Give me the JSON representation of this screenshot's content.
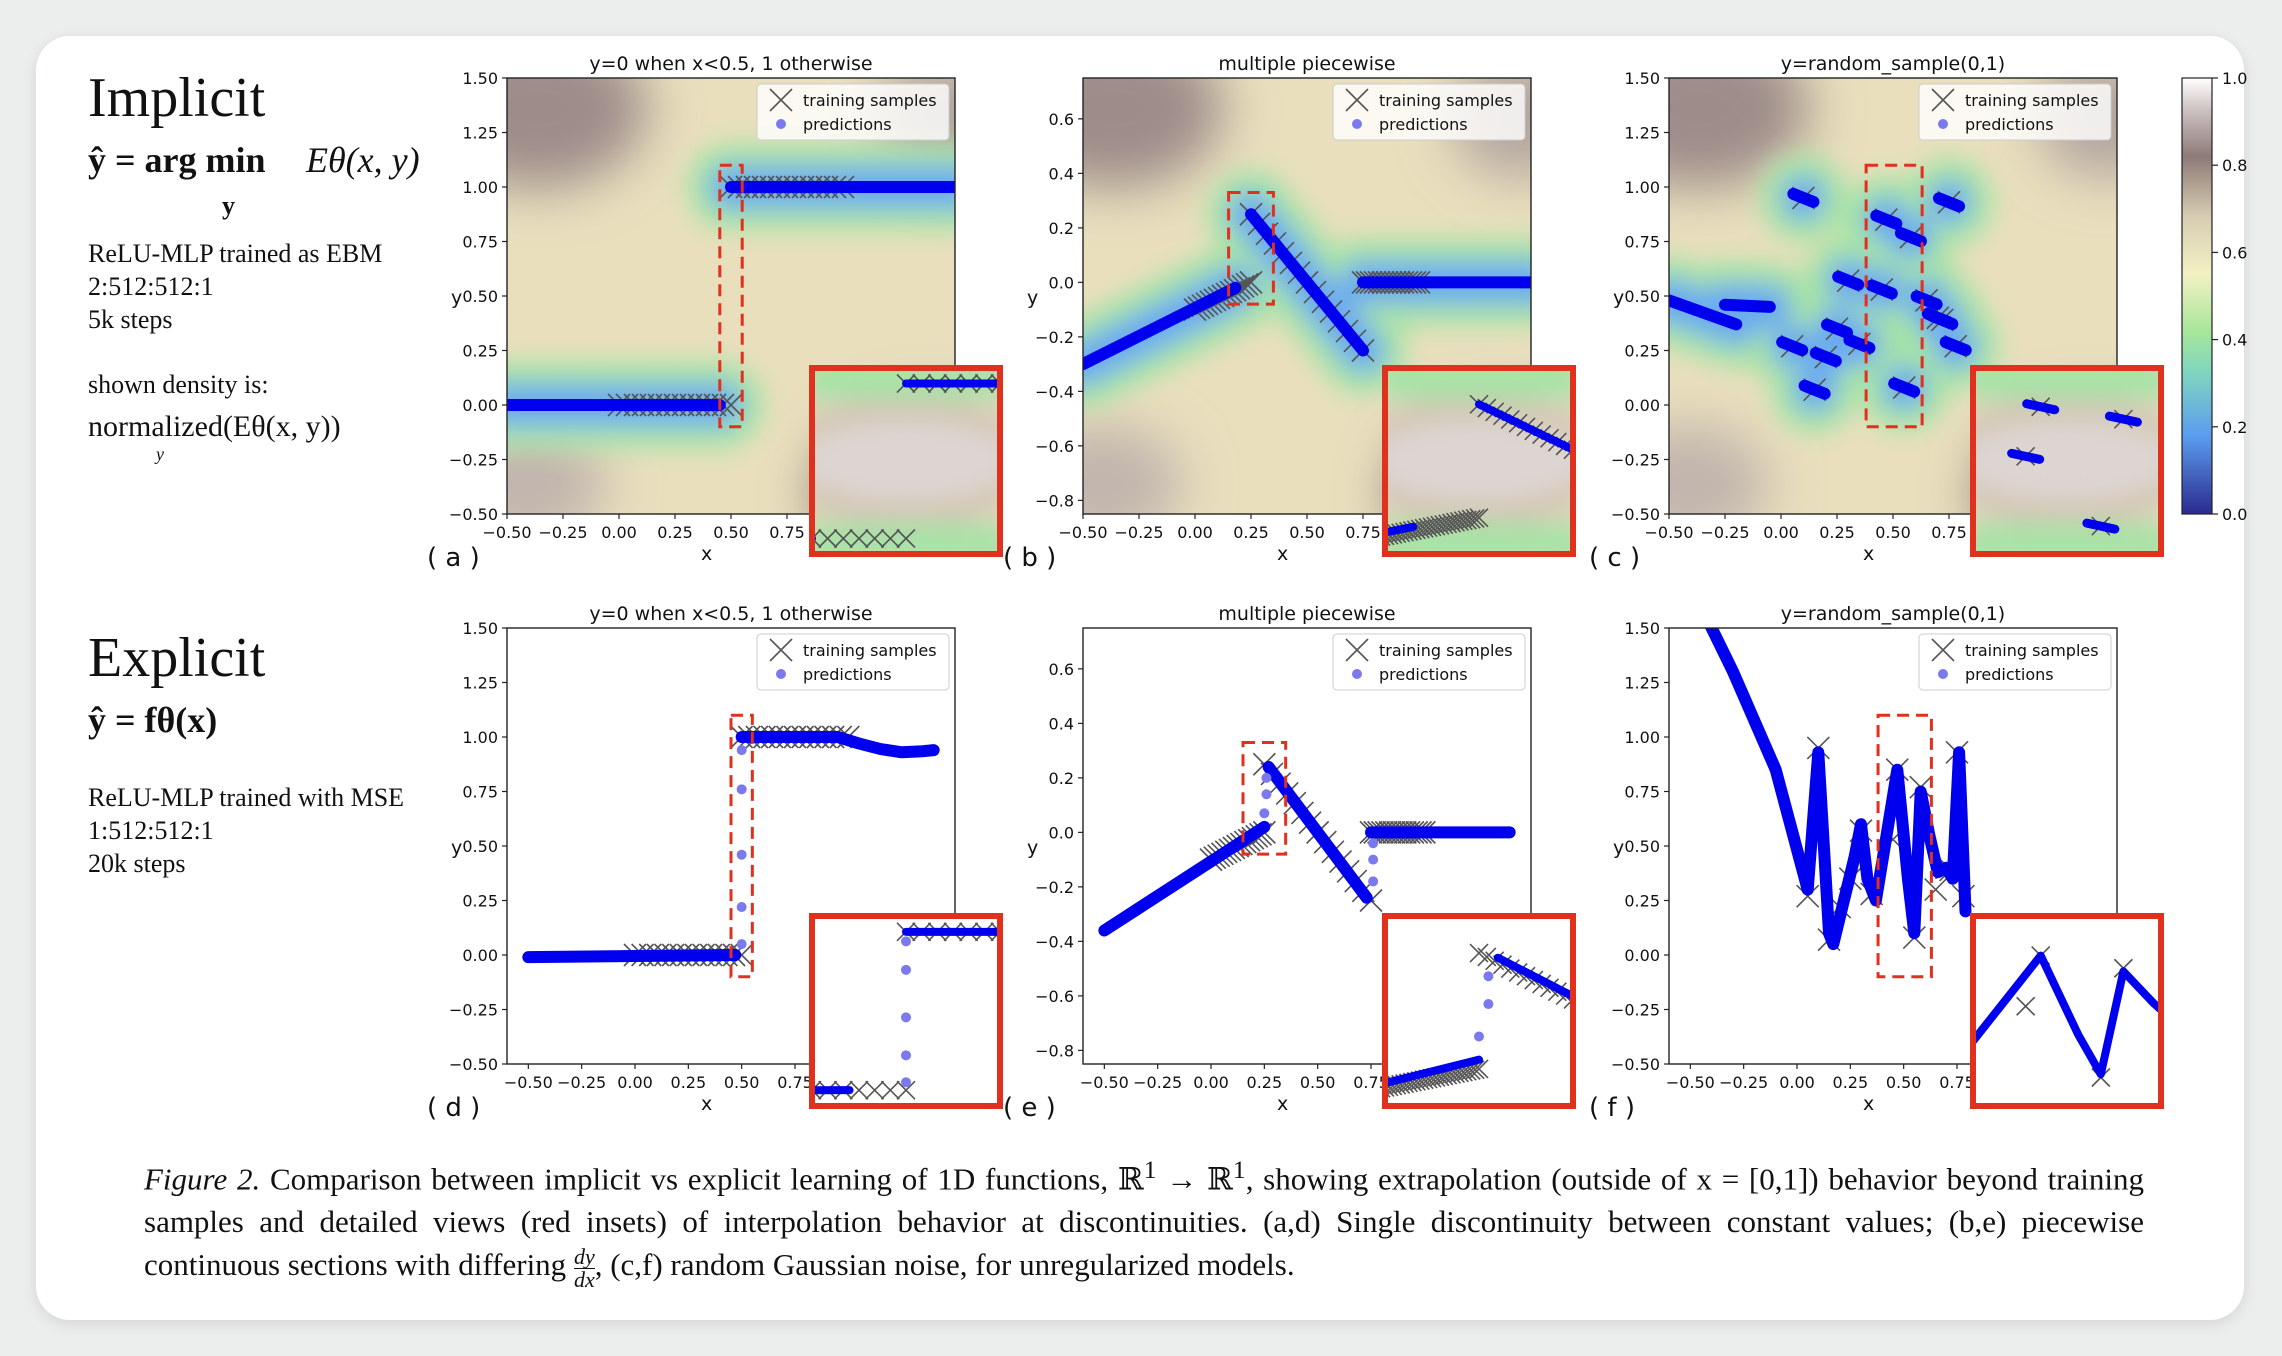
{
  "rows": {
    "implicit": {
      "heading": "Implicit",
      "equation_lhs": "ŷ = arg min",
      "equation_sub": "y",
      "equation_rhs": "Eθ(x, y)",
      "desc": [
        "ReLU-MLP trained as EBM",
        "2:512:512:1",
        "5k steps"
      ],
      "density_label": "shown density is:",
      "density_expr": "normalized(Eθ(x, y))",
      "density_sub": "y"
    },
    "explicit": {
      "heading": "Explicit",
      "equation": "ŷ = fθ(x)",
      "desc": [
        "ReLU-MLP trained with MSE",
        "1:512:512:1",
        "20k steps"
      ]
    }
  },
  "colorbar": {
    "ticks": [
      "0.0",
      "0.2",
      "0.4",
      "0.6",
      "0.8",
      "1.0"
    ],
    "colors": [
      "#2f2f99",
      "#5aa0ef",
      "#90e0a0",
      "#f5f0c8",
      "#d9d0c0",
      "#8a7a7a",
      "#ffffff"
    ]
  },
  "legend": {
    "training": "training samples",
    "predictions": "predictions"
  },
  "colors": {
    "prediction": "#0000ee",
    "prediction_light": "#7a7aee",
    "inset_border": "#e0301e",
    "dashed_box": "#e0301e",
    "marker": "#555555"
  },
  "chart_data": [
    {
      "id": "a",
      "panel_label": "( a )",
      "type": "scatter",
      "title": "y=0 when x<0.5, 1 otherwise",
      "xlabel": "x",
      "ylabel": "y",
      "xlim": [
        -0.5,
        1.5
      ],
      "ylim": [
        -0.5,
        1.5
      ],
      "xticks": [
        "−0.50",
        "−0.25",
        "0.00",
        "0.25",
        "0.50",
        "0.75"
      ],
      "yticks": [
        "−0.50",
        "−0.25",
        "0.00",
        "0.25",
        "0.50",
        "0.75",
        "1.00",
        "1.25",
        "1.50"
      ],
      "background": "energy density heatmap",
      "training_segments": [
        [
          [
            0.0,
            0.0
          ],
          [
            0.5,
            0.0
          ]
        ],
        [
          [
            0.5,
            1.0
          ],
          [
            1.0,
            1.0
          ]
        ]
      ],
      "prediction_segments": [
        [
          [
            -0.5,
            0.0
          ],
          [
            0.45,
            0.0
          ]
        ],
        [
          [
            0.5,
            1.0
          ],
          [
            1.5,
            1.0
          ]
        ]
      ],
      "prediction_jump": [],
      "highlight_box": {
        "x": [
          0.45,
          0.55
        ],
        "y": [
          -0.1,
          1.1
        ]
      }
    },
    {
      "id": "b",
      "panel_label": "( b )",
      "type": "scatter",
      "title": "multiple piecewise",
      "xlabel": "x",
      "ylabel": "y",
      "xlim": [
        -0.5,
        1.5
      ],
      "ylim": [
        -0.85,
        0.75
      ],
      "xticks": [
        "−0.50",
        "−0.25",
        "0.00",
        "0.25",
        "0.50",
        "0.75"
      ],
      "yticks": [
        "−0.8",
        "−0.6",
        "−0.4",
        "−0.2",
        "0.0",
        "0.2",
        "0.4",
        "0.6"
      ],
      "background": "energy density heatmap",
      "training_segments": [
        [
          [
            0.0,
            -0.1
          ],
          [
            0.25,
            0.0
          ]
        ],
        [
          [
            0.25,
            0.25
          ],
          [
            0.75,
            -0.25
          ]
        ],
        [
          [
            0.75,
            0.0
          ],
          [
            1.0,
            0.0
          ]
        ]
      ],
      "prediction_segments": [
        [
          [
            -0.5,
            -0.3
          ],
          [
            0.18,
            -0.02
          ]
        ],
        [
          [
            0.25,
            0.25
          ],
          [
            0.75,
            -0.25
          ]
        ],
        [
          [
            0.75,
            0.0
          ],
          [
            1.5,
            0.0
          ]
        ]
      ],
      "prediction_jump": [],
      "highlight_box": {
        "x": [
          0.15,
          0.35
        ],
        "y": [
          -0.08,
          0.33
        ]
      }
    },
    {
      "id": "c",
      "panel_label": "( c )",
      "type": "scatter",
      "title": "y=random_sample(0,1)",
      "xlabel": "x",
      "ylabel": "y",
      "xlim": [
        -0.5,
        1.5
      ],
      "ylim": [
        -0.5,
        1.5
      ],
      "xticks": [
        "−0.50",
        "−0.25",
        "0.00",
        "0.25",
        "0.50",
        "0.75"
      ],
      "yticks": [
        "−0.50",
        "−0.25",
        "0.00",
        "0.25",
        "0.50",
        "0.75",
        "1.00",
        "1.25",
        "1.50"
      ],
      "background": "energy density heatmap",
      "training_points": [
        [
          0.1,
          0.95
        ],
        [
          0.05,
          0.27
        ],
        [
          0.15,
          0.07
        ],
        [
          0.2,
          0.22
        ],
        [
          0.25,
          0.35
        ],
        [
          0.3,
          0.57
        ],
        [
          0.35,
          0.28
        ],
        [
          0.45,
          0.53
        ],
        [
          0.47,
          0.85
        ],
        [
          0.55,
          0.08
        ],
        [
          0.58,
          0.77
        ],
        [
          0.65,
          0.48
        ],
        [
          0.7,
          0.4
        ],
        [
          0.75,
          0.93
        ],
        [
          0.78,
          0.27
        ],
        [
          0.72,
          0.39
        ]
      ],
      "prediction_segments": [
        [
          [
            -0.5,
            0.48
          ],
          [
            -0.2,
            0.37
          ]
        ],
        [
          [
            -0.25,
            0.46
          ],
          [
            -0.05,
            0.45
          ]
        ]
      ],
      "prediction_jump": [],
      "highlight_box": {
        "x": [
          0.38,
          0.63
        ],
        "y": [
          -0.1,
          1.1
        ]
      }
    },
    {
      "id": "d",
      "panel_label": "( d )",
      "type": "scatter",
      "title": "y=0 when x<0.5, 1 otherwise",
      "xlabel": "x",
      "ylabel": "y",
      "xlim": [
        -0.6,
        1.5
      ],
      "ylim": [
        -0.5,
        1.5
      ],
      "xticks": [
        "−0.50",
        "−0.25",
        "0.00",
        "0.25",
        "0.50",
        "0.75"
      ],
      "yticks": [
        "−0.50",
        "−0.25",
        "0.00",
        "0.25",
        "0.50",
        "0.75",
        "1.00",
        "1.25",
        "1.50"
      ],
      "training_segments": [
        [
          [
            0.0,
            0.0
          ],
          [
            0.5,
            0.0
          ]
        ],
        [
          [
            0.5,
            1.0
          ],
          [
            1.0,
            1.0
          ]
        ]
      ],
      "prediction_segments": [
        [
          [
            -0.5,
            -0.01
          ],
          [
            0.47,
            0.0
          ]
        ],
        [
          [
            0.5,
            1.0
          ],
          [
            0.95,
            1.0
          ]
        ]
      ],
      "prediction_curve": [
        [
          0.95,
          1.0
        ],
        [
          1.05,
          0.97
        ],
        [
          1.15,
          0.945
        ],
        [
          1.25,
          0.93
        ],
        [
          1.35,
          0.935
        ],
        [
          1.4,
          0.94
        ]
      ],
      "prediction_jump": [
        [
          0.5,
          0.05
        ],
        [
          0.5,
          0.22
        ],
        [
          0.5,
          0.46
        ],
        [
          0.5,
          0.76
        ],
        [
          0.5,
          0.94
        ]
      ],
      "highlight_box": {
        "x": [
          0.45,
          0.55
        ],
        "y": [
          -0.1,
          1.1
        ]
      }
    },
    {
      "id": "e",
      "panel_label": "( e )",
      "type": "scatter",
      "title": "multiple piecewise",
      "xlabel": "x",
      "ylabel": "y",
      "xlim": [
        -0.6,
        1.5
      ],
      "ylim": [
        -0.85,
        0.75
      ],
      "xticks": [
        "−0.50",
        "−0.25",
        "0.00",
        "0.25",
        "0.50",
        "0.75"
      ],
      "yticks": [
        "−0.8",
        "−0.6",
        "−0.4",
        "−0.2",
        "0.0",
        "0.2",
        "0.4",
        "0.6"
      ],
      "training_segments": [
        [
          [
            0.0,
            -0.1
          ],
          [
            0.25,
            0.0
          ]
        ],
        [
          [
            0.25,
            0.25
          ],
          [
            0.75,
            -0.25
          ]
        ],
        [
          [
            0.75,
            0.0
          ],
          [
            1.0,
            0.0
          ]
        ]
      ],
      "prediction_segments": [
        [
          [
            -0.5,
            -0.36
          ],
          [
            0.25,
            0.02
          ]
        ],
        [
          [
            0.27,
            0.24
          ],
          [
            0.73,
            -0.24
          ]
        ],
        [
          [
            0.75,
            0.0
          ],
          [
            1.4,
            0.0
          ]
        ]
      ],
      "prediction_jump": [
        [
          0.25,
          0.07
        ],
        [
          0.26,
          0.14
        ],
        [
          0.26,
          0.2
        ],
        [
          0.76,
          -0.18
        ],
        [
          0.76,
          -0.1
        ],
        [
          0.76,
          -0.04
        ]
      ],
      "highlight_box": {
        "x": [
          0.15,
          0.35
        ],
        "y": [
          -0.08,
          0.33
        ]
      }
    },
    {
      "id": "f",
      "panel_label": "( f )",
      "type": "scatter",
      "title": "y=random_sample(0,1)",
      "xlabel": "x",
      "ylabel": "y",
      "xlim": [
        -0.6,
        1.5
      ],
      "ylim": [
        -0.5,
        1.5
      ],
      "xticks": [
        "−0.50",
        "−0.25",
        "0.00",
        "0.25",
        "0.50",
        "0.75"
      ],
      "yticks": [
        "−0.50",
        "−0.25",
        "0.00",
        "0.25",
        "0.50",
        "0.75",
        "1.00",
        "1.25",
        "1.50"
      ],
      "training_points": [
        [
          0.05,
          0.27
        ],
        [
          0.1,
          0.95
        ],
        [
          0.15,
          0.07
        ],
        [
          0.2,
          0.22
        ],
        [
          0.25,
          0.35
        ],
        [
          0.3,
          0.57
        ],
        [
          0.35,
          0.28
        ],
        [
          0.45,
          0.53
        ],
        [
          0.47,
          0.85
        ],
        [
          0.55,
          0.08
        ],
        [
          0.58,
          0.77
        ],
        [
          0.65,
          0.3
        ],
        [
          0.7,
          0.4
        ],
        [
          0.75,
          0.93
        ],
        [
          0.78,
          0.27
        ],
        [
          0.72,
          0.39
        ]
      ],
      "prediction_curve": [
        [
          -0.5,
          1.7
        ],
        [
          -0.3,
          1.3
        ],
        [
          -0.1,
          0.85
        ],
        [
          0.05,
          0.3
        ],
        [
          0.1,
          0.93
        ],
        [
          0.15,
          0.1
        ],
        [
          0.17,
          0.05
        ],
        [
          0.22,
          0.25
        ],
        [
          0.27,
          0.45
        ],
        [
          0.3,
          0.6
        ],
        [
          0.33,
          0.35
        ],
        [
          0.37,
          0.25
        ],
        [
          0.42,
          0.55
        ],
        [
          0.47,
          0.85
        ],
        [
          0.52,
          0.35
        ],
        [
          0.55,
          0.1
        ],
        [
          0.58,
          0.75
        ],
        [
          0.62,
          0.55
        ],
        [
          0.66,
          0.38
        ],
        [
          0.7,
          0.4
        ],
        [
          0.73,
          0.35
        ],
        [
          0.76,
          0.93
        ],
        [
          0.79,
          0.2
        ]
      ],
      "prediction_jump": [],
      "highlight_box": {
        "x": [
          0.38,
          0.63
        ],
        "y": [
          -0.1,
          1.1
        ]
      }
    }
  ],
  "caption": {
    "label": "Figure 2.",
    "text1": "Comparison between implicit vs explicit learning of 1D functions, ℝ",
    "sup1": "1",
    "arrow": " → ℝ",
    "sup2": "1",
    "text2": ", showing extrapolation (outside of x = [0,1]) behavior beyond training samples and detailed views (red insets) of interpolation behavior at discontinuities. (a,d) Single discontinuity between constant values; (b,e) piecewise continuous sections with differing ",
    "frac_num": "dy",
    "frac_den": "dx",
    "text3": ", (c,f) random Gaussian noise, for unregularized models."
  }
}
